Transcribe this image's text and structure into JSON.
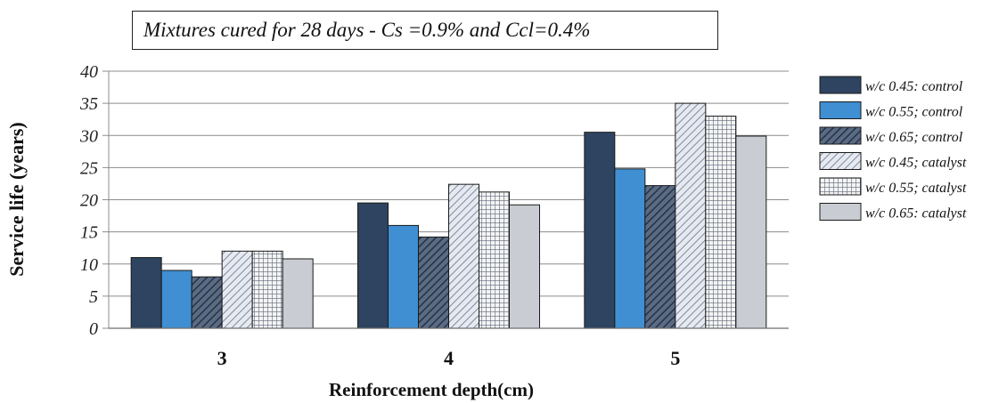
{
  "chart_data": {
    "type": "bar",
    "title": "Mixtures cured for 28 days - Cs =0.9% and Ccl=0.4%",
    "xlabel": "Reinforcement depth(cm)",
    "ylabel": "Service life (years)",
    "categories": [
      "3",
      "4",
      "5"
    ],
    "ylim": [
      0,
      40
    ],
    "yticks": [
      "0",
      "5",
      "10",
      "15",
      "20",
      "25",
      "30",
      "35",
      "40"
    ],
    "grid": true,
    "legend_position": "right",
    "series": [
      {
        "name": "w/c 0.45: control",
        "values": [
          11,
          19.5,
          30.5
        ],
        "color": "#2e4460",
        "pattern": "solid"
      },
      {
        "name": "w/c 0.55; control",
        "values": [
          9,
          16,
          24.8
        ],
        "color": "#3f8fd2",
        "pattern": "solid"
      },
      {
        "name": "w/c 0.65; control",
        "values": [
          8,
          14.2,
          22.2
        ],
        "color": "#3a4c63",
        "pattern": "diag"
      },
      {
        "name": "w/c 0.45; catalyst",
        "values": [
          12,
          22.4,
          35
        ],
        "color": "#9aa8bd",
        "pattern": "diag-light"
      },
      {
        "name": "w/c 0.55; catalyst",
        "values": [
          12,
          21.2,
          33
        ],
        "color": "#6c7788",
        "pattern": "grid"
      },
      {
        "name": "w/c 0.65: catalyst",
        "values": [
          10.8,
          19.2,
          29.9
        ],
        "color": "#c9ccd2",
        "pattern": "solid"
      }
    ]
  }
}
